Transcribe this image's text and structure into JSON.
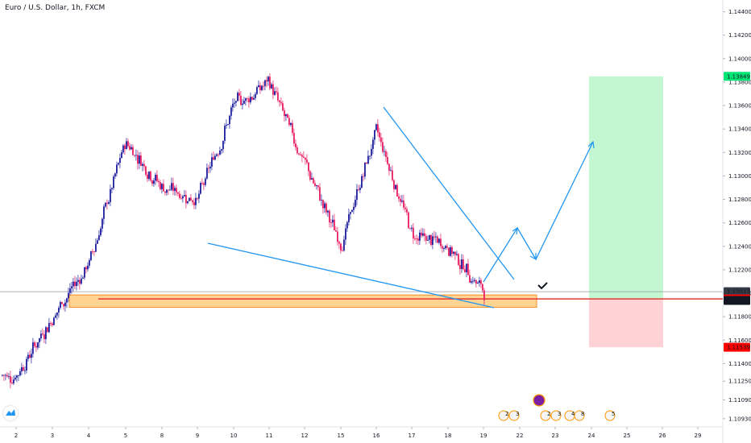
{
  "chart_data": {
    "type": "candlestick",
    "title": "Euro / U.S. Dollar, 1h, FXCM",
    "ylim": [
      1.1086,
      1.145
    ],
    "y_ticks": [
      "1.14400",
      "1.14200",
      "1.14000",
      "1.13800",
      "1.13600",
      "1.13400",
      "1.13200",
      "1.13000",
      "1.12800",
      "1.12600",
      "1.12400",
      "1.12200",
      "1.12000",
      "1.11800",
      "1.11600",
      "1.11400",
      "1.11250",
      "1.11090",
      "1.10930"
    ],
    "x_ticks": [
      "2",
      "3",
      "4",
      "5",
      "8",
      "9",
      "10",
      "11",
      "12",
      "15",
      "16",
      "17",
      "18",
      "19",
      "22",
      "23",
      "24",
      "25",
      "26",
      "29"
    ],
    "price_labels": [
      {
        "text": "1.13849",
        "value": 1.13849,
        "color": "#00e676",
        "text_color": "#131722"
      },
      {
        "text": "1.12013",
        "value": 1.12013,
        "color": "#363a45",
        "text_color": "#ffffff"
      },
      {
        "text": "29:29",
        "value": 1.11962,
        "color": "#363a45",
        "text_color": "#ffffff"
      },
      {
        "text": "1.11951",
        "value": 1.11951,
        "color": "#ff0000",
        "text_color": "#ffffff"
      },
      {
        "text": "1.11938",
        "value": 1.11938,
        "color": "#131722",
        "text_color": "#ffffff"
      },
      {
        "text": "1.11539",
        "value": 1.11539,
        "color": "#ff0000",
        "text_color": "#ffffff"
      }
    ],
    "key_levels": {
      "current_price": 1.12013,
      "entry": 1.11951,
      "target": 1.13849,
      "stop": 1.11539
    },
    "support_zone": [
      1.1188,
      1.11985
    ],
    "candles_ohlc_approx": [
      {
        "day": "2",
        "price": 1.113
      },
      {
        "day": "3",
        "price": 1.118
      },
      {
        "day": "4",
        "price": 1.1225
      },
      {
        "day": "5",
        "price": 1.133
      },
      {
        "day": "8",
        "price": 1.129
      },
      {
        "day": "9",
        "price": 1.128
      },
      {
        "day": "10",
        "price": 1.136
      },
      {
        "day": "11",
        "price": 1.138
      },
      {
        "day": "12",
        "price": 1.131
      },
      {
        "day": "15",
        "price": 1.124
      },
      {
        "day": "16",
        "price": 1.134
      },
      {
        "day": "17",
        "price": 1.125
      },
      {
        "day": "18",
        "price": 1.124
      },
      {
        "day": "19",
        "price": 1.1201
      }
    ],
    "colors": {
      "up": "#1e1e9e",
      "down": "#e91e63",
      "trend_line": "#2196f3",
      "support_zone_fill": "#ffcc80",
      "support_zone_border": "#f57c00",
      "level_line": "#e53935",
      "profit_box": "#b9f6ca",
      "loss_box": "#ffcdd2"
    },
    "grid": false,
    "event_markers": [
      {
        "label": "2"
      },
      {
        "label": "3"
      },
      {
        "label": "2"
      },
      {
        "label": "3"
      },
      {
        "label": "4"
      },
      {
        "label": "8"
      },
      {
        "label": "5"
      }
    ]
  },
  "logo": {
    "icon": "tradingview-logo-icon"
  }
}
